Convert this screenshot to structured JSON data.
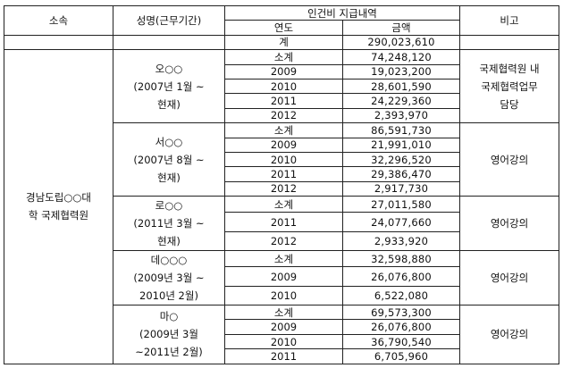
{
  "header": {
    "col_affiliation": "소속",
    "col_name_period": "성명(근무기간)",
    "col_payment": "인건비 지급내역",
    "col_remark": "비고",
    "sub_year": "연도",
    "sub_amount": "금액"
  },
  "grand_total": {
    "label": "계",
    "amount": "290,023,610"
  },
  "affiliation": {
    "line1": "경남도립○○대",
    "line2": "학 국제협력원"
  },
  "persons": [
    {
      "name": "오○○",
      "period_line1": "(2007년 1월 ~",
      "period_line2": "현재)",
      "remark_lines": [
        "국제협력원 내",
        "국제협력업무",
        "담당"
      ],
      "rows": [
        {
          "year": "소계",
          "amount": "74,248,120"
        },
        {
          "year": "2009",
          "amount": "19,023,200"
        },
        {
          "year": "2010",
          "amount": "28,601,590"
        },
        {
          "year": "2011",
          "amount": "24,229,360"
        },
        {
          "year": "2012",
          "amount": "2,393,970"
        }
      ]
    },
    {
      "name": "서○○",
      "period_line1": "(2007년 8월 ~",
      "period_line2": "현재)",
      "remark_lines": [
        "영어강의"
      ],
      "rows": [
        {
          "year": "소계",
          "amount": "86,591,730"
        },
        {
          "year": "2009",
          "amount": "21,991,010"
        },
        {
          "year": "2010",
          "amount": "32,296,520"
        },
        {
          "year": "2011",
          "amount": "29,386,470"
        },
        {
          "year": "2012",
          "amount": "2,917,730"
        }
      ]
    },
    {
      "name": "로○○",
      "period_line1": "(2011년 3월 ~",
      "period_line2": "현재)",
      "remark_lines": [
        "영어강의"
      ],
      "rows": [
        {
          "year": "소계",
          "amount": "27,011,580"
        },
        {
          "year": "2011",
          "amount": "24,077,660"
        },
        {
          "year": "2012",
          "amount": "2,933,920"
        }
      ]
    },
    {
      "name": "데○○○",
      "period_line1": "(2009년 3월 ~",
      "period_line2": "2010년 2월)",
      "remark_lines": [
        "영어강의"
      ],
      "rows": [
        {
          "year": "소계",
          "amount": "32,598,880"
        },
        {
          "year": "2009",
          "amount": "26,076,800"
        },
        {
          "year": "2010",
          "amount": "6,522,080"
        }
      ]
    },
    {
      "name": "마○",
      "period_line1": "(2009년 3월",
      "period_line2": "~2011년 2월)",
      "remark_lines": [
        "영어강의"
      ],
      "rows": [
        {
          "year": "소계",
          "amount": "69,573,300"
        },
        {
          "year": "2009",
          "amount": "26,076,800"
        },
        {
          "year": "2010",
          "amount": "36,790,540"
        },
        {
          "year": "2011",
          "amount": "6,705,960"
        }
      ]
    }
  ]
}
